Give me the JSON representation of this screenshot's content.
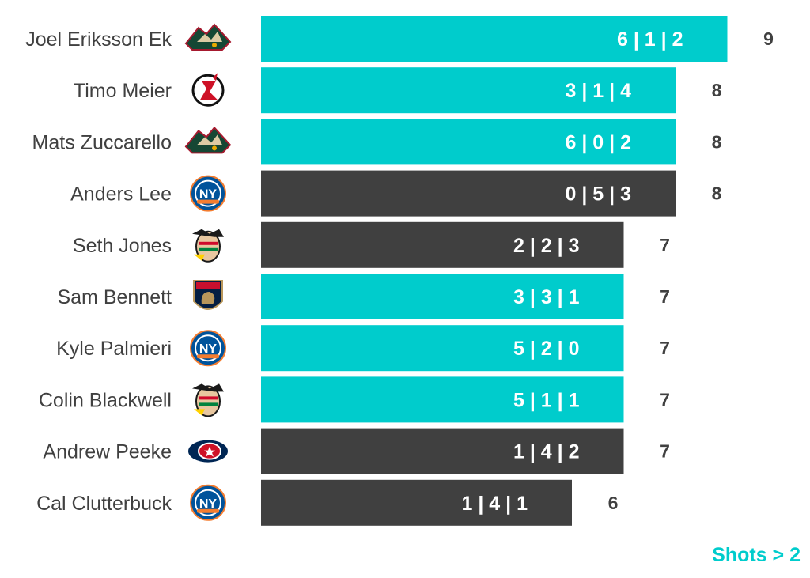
{
  "chart_data": {
    "type": "bar",
    "orientation": "horizontal",
    "categories": [
      "Joel Eriksson Ek",
      "Timo Meier",
      "Mats Zuccarello",
      "Anders Lee",
      "Seth Jones",
      "Sam Bennett",
      "Kyle Palmieri",
      "Colin Blackwell",
      "Andrew Peeke",
      "Cal Clutterbuck"
    ],
    "values": [
      9,
      8,
      8,
      8,
      7,
      7,
      7,
      7,
      7,
      6
    ],
    "bar_labels": [
      "6 | 1 | 2",
      "3 | 1 | 4",
      "6 | 0 | 2",
      "0 | 5 | 3",
      "2 | 2 | 3",
      "3 | 3 | 1",
      "5 | 2 | 0",
      "5 | 1 | 1",
      "1 | 4 | 2",
      "1 | 4 | 1"
    ],
    "team_logos": [
      "minnesota-wild-logo",
      "new-jersey-devils-logo",
      "minnesota-wild-logo",
      "new-york-islanders-logo",
      "chicago-blackhawks-logo",
      "florida-panthers-logo",
      "new-york-islanders-logo",
      "chicago-blackhawks-logo",
      "columbus-blue-jackets-logo",
      "new-york-islanders-logo"
    ],
    "bar_colors": [
      "#00CCCC",
      "#00CCCC",
      "#00CCCC",
      "#404040",
      "#404040",
      "#00CCCC",
      "#00CCCC",
      "#00CCCC",
      "#404040",
      "#404040"
    ],
    "title": "",
    "xlabel": "",
    "ylabel": "",
    "xlim": [
      0,
      9
    ],
    "grid": false,
    "legend": "none"
  },
  "footnote": "Shots > 2",
  "colors": {
    "accent": "#00CCCC",
    "dark": "#404040",
    "text": "#404040",
    "bar_text": "#FFFFFF"
  }
}
